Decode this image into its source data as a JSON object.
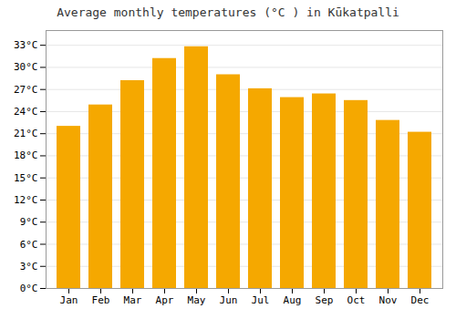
{
  "chart_data": {
    "type": "bar",
    "title": "Average monthly temperatures (°C ) in Kūkatpalli",
    "categories": [
      "Jan",
      "Feb",
      "Mar",
      "Apr",
      "May",
      "Jun",
      "Jul",
      "Aug",
      "Sep",
      "Oct",
      "Nov",
      "Dec"
    ],
    "values": [
      22.0,
      24.9,
      28.2,
      31.2,
      32.8,
      29.0,
      27.1,
      25.9,
      26.4,
      25.5,
      22.8,
      21.2
    ],
    "color": "#F5A800",
    "ylim": [
      0,
      35
    ],
    "yticks": [
      {
        "value": 0,
        "label": "0°C"
      },
      {
        "value": 3,
        "label": "3°C"
      },
      {
        "value": 6,
        "label": "6°C"
      },
      {
        "value": 9,
        "label": "9°C"
      },
      {
        "value": 12,
        "label": "12°C"
      },
      {
        "value": 15,
        "label": "15°C"
      },
      {
        "value": 18,
        "label": "18°C"
      },
      {
        "value": 21,
        "label": "21°C"
      },
      {
        "value": 24,
        "label": "24°C"
      },
      {
        "value": 27,
        "label": "27°C"
      },
      {
        "value": 30,
        "label": "30°C"
      },
      {
        "value": 33,
        "label": "33°C"
      }
    ],
    "grid": true
  }
}
